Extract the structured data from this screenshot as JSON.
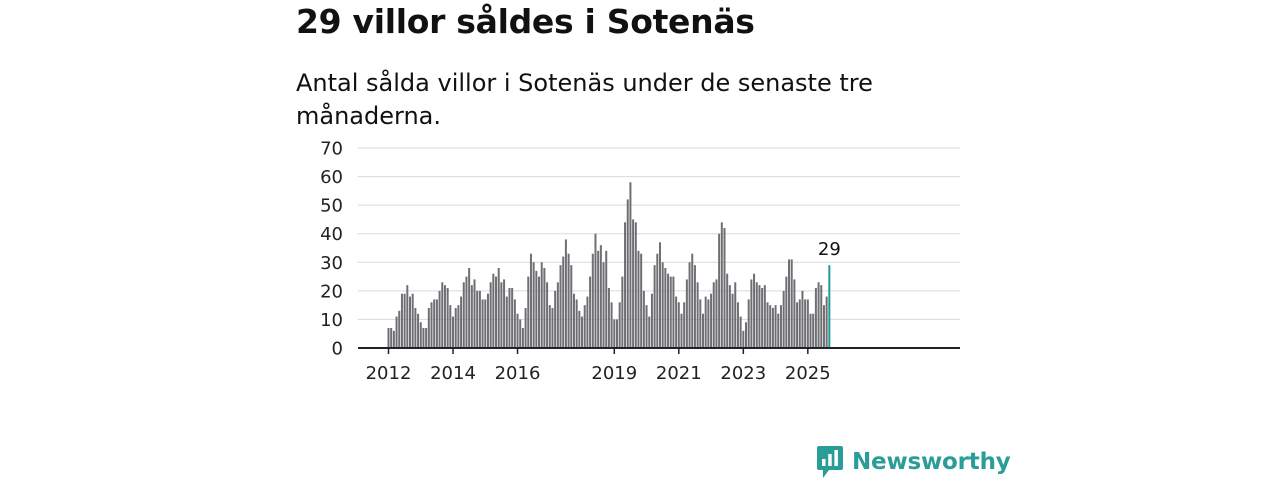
{
  "header": {
    "title": "29 villor såldes i Sotenäs",
    "subtitle": "Antal sålda villor i Sotenäs under de senaste tre månaderna."
  },
  "brand": {
    "name": "Newsworthy",
    "icon": "newsworthy-logo-icon",
    "color": "#2a9d99"
  },
  "colors": {
    "bar": "#6f6e73",
    "highlight": "#1f9c96",
    "grid": "#d9d9d9",
    "axis": "#222222"
  },
  "chart_data": {
    "type": "bar",
    "title": "29 villor såldes i Sotenäs",
    "subtitle": "Antal sålda villor i Sotenäs under de senaste tre månaderna.",
    "ylim": [
      0,
      70
    ],
    "yticks": [
      0,
      10,
      20,
      30,
      40,
      50,
      60,
      70
    ],
    "grid": true,
    "x_start": "2012-01",
    "xticks": [
      "2012",
      "2014",
      "2016",
      "2019",
      "2021",
      "2023",
      "2025"
    ],
    "highlight_label": "29",
    "values": [
      7,
      7,
      6,
      11,
      13,
      19,
      19,
      22,
      18,
      19,
      14,
      12,
      9,
      7,
      7,
      14,
      16,
      17,
      17,
      20,
      23,
      22,
      21,
      15,
      11,
      14,
      15,
      18,
      23,
      25,
      28,
      22,
      24,
      20,
      20,
      17,
      17,
      19,
      23,
      26,
      25,
      28,
      23,
      24,
      18,
      21,
      21,
      17,
      12,
      10,
      7,
      14,
      25,
      33,
      30,
      27,
      25,
      30,
      28,
      23,
      15,
      14,
      20,
      23,
      29,
      32,
      38,
      33,
      29,
      19,
      17,
      13,
      11,
      15,
      18,
      25,
      33,
      40,
      34,
      36,
      30,
      34,
      21,
      16,
      10,
      10,
      16,
      25,
      44,
      52,
      58,
      45,
      44,
      34,
      33,
      20,
      15,
      11,
      19,
      29,
      33,
      37,
      30,
      28,
      26,
      25,
      25,
      18,
      16,
      12,
      16,
      24,
      30,
      33,
      29,
      23,
      17,
      12,
      18,
      17,
      19,
      23,
      24,
      40,
      44,
      42,
      26,
      22,
      19,
      23,
      16,
      11,
      6,
      9,
      17,
      24,
      26,
      23,
      22,
      21,
      22,
      16,
      15,
      14,
      15,
      12,
      15,
      20,
      25,
      31,
      31,
      24,
      16,
      17,
      20,
      17,
      17,
      12,
      12,
      21,
      23,
      22,
      15,
      18,
      29
    ]
  }
}
